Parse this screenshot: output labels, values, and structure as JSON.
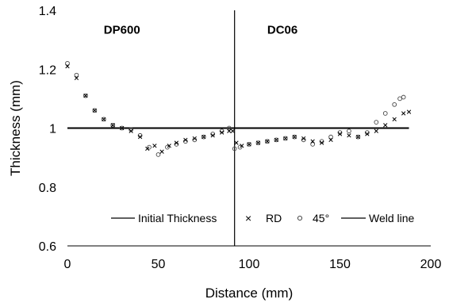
{
  "chart_data": {
    "type": "scatter",
    "xlabel": "Distance (mm)",
    "ylabel": "Thickness (mm)",
    "xlim": [
      0,
      200
    ],
    "ylim": [
      0.6,
      1.4
    ],
    "x_ticks": [
      "0",
      "50",
      "100",
      "150",
      "200"
    ],
    "y_ticks": [
      "0.6",
      "0.8",
      "1",
      "1.2",
      "1.4"
    ],
    "grid": false,
    "legend_position": "bottom-right",
    "annotations": [
      {
        "text": "DP600",
        "x": 20,
        "y": 1.32
      },
      {
        "text": "DC06",
        "x": 110,
        "y": 1.32
      }
    ],
    "series": [
      {
        "name": "Initial Thickness",
        "marker": "line",
        "color": "#000000",
        "x": [
          0,
          188
        ],
        "y": [
          1.0,
          1.0
        ]
      },
      {
        "name": "RD",
        "marker": "x",
        "color": "#000000",
        "x": [
          0,
          5,
          10,
          15,
          20,
          25,
          30,
          35,
          40,
          44,
          48,
          52,
          56,
          60,
          65,
          70,
          75,
          80,
          85,
          89,
          91,
          93,
          96,
          100,
          105,
          110,
          115,
          120,
          125,
          130,
          135,
          140,
          145,
          150,
          155,
          160,
          165,
          170,
          175,
          180,
          185,
          188
        ],
        "y": [
          1.21,
          1.17,
          1.11,
          1.06,
          1.03,
          1.01,
          1.0,
          0.99,
          0.97,
          0.93,
          0.94,
          0.92,
          0.94,
          0.95,
          0.96,
          0.965,
          0.97,
          0.975,
          0.985,
          0.99,
          0.99,
          0.95,
          0.94,
          0.945,
          0.95,
          0.955,
          0.96,
          0.965,
          0.97,
          0.965,
          0.955,
          0.95,
          0.96,
          0.98,
          0.975,
          0.97,
          0.98,
          0.99,
          1.01,
          1.03,
          1.05,
          1.055
        ]
      },
      {
        "name": "45°",
        "marker": "circle",
        "color": "#000000",
        "x": [
          0,
          5,
          10,
          15,
          20,
          25,
          30,
          35,
          40,
          45,
          50,
          55,
          60,
          65,
          70,
          75,
          80,
          85,
          89,
          92,
          95,
          100,
          105,
          110,
          115,
          120,
          125,
          130,
          135,
          140,
          145,
          150,
          155,
          160,
          165,
          170,
          175,
          180,
          183,
          185
        ],
        "y": [
          1.22,
          1.18,
          1.11,
          1.06,
          1.03,
          1.01,
          1.0,
          0.995,
          0.975,
          0.935,
          0.91,
          0.935,
          0.945,
          0.955,
          0.96,
          0.97,
          0.98,
          0.99,
          1.0,
          0.93,
          0.935,
          0.945,
          0.95,
          0.955,
          0.96,
          0.965,
          0.97,
          0.96,
          0.945,
          0.955,
          0.97,
          0.985,
          0.99,
          0.97,
          0.985,
          1.02,
          1.05,
          1.08,
          1.1,
          1.105
        ]
      },
      {
        "name": "Weld line",
        "marker": "vline",
        "color": "#000000",
        "x": [
          92,
          92
        ],
        "y": [
          0.6,
          1.4
        ]
      }
    ]
  }
}
